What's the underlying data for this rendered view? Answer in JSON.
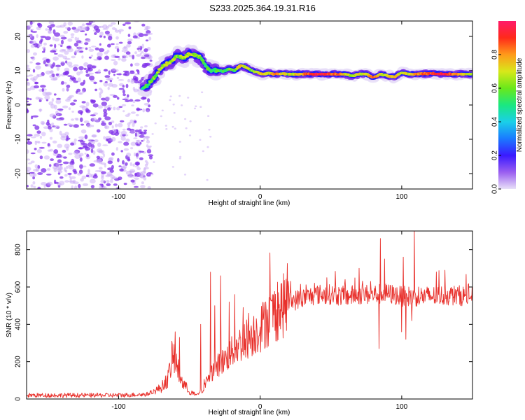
{
  "title": "S233.2025.364.19.31.R16",
  "colors": {
    "snr_line": "#e8312c",
    "dots": "#7d2ee8",
    "dots_light": "#c7a8f5",
    "ridge_core": "#e8313a",
    "ridge_mid": "#22cc66",
    "ridge_edge": "#1a1aff"
  },
  "chart_data": [
    {
      "id": "spectrogram",
      "type": "heatmap",
      "title": "",
      "xlabel": "Height of straight line (km)",
      "ylabel": "Frequency (Hz)",
      "xlim": [
        -165,
        150
      ],
      "ylim": [
        -24.5,
        24.5
      ],
      "xticks": [
        "-100",
        "0",
        "100"
      ],
      "yticks": [
        "-20",
        "-10",
        "0",
        "10",
        "20"
      ],
      "colorbar": {
        "label": "Normalized spectral amplitude",
        "range": [
          0,
          1
        ],
        "ticks": [
          "0.0",
          "0.2",
          "0.4",
          "0.6",
          "0.8"
        ],
        "colormap": [
          "#e8e0f8",
          "#9a5ef0",
          "#3a1aff",
          "#1a7aff",
          "#1ad0e8",
          "#1ae880",
          "#6ae81a",
          "#d8e81a",
          "#ff9a1a",
          "#ff2a1a",
          "#ff1a6a"
        ]
      },
      "ridge": {
        "x": [
          -83,
          -80,
          -77,
          -74,
          -70,
          -66,
          -62,
          -58,
          -54,
          -50,
          -46,
          -42,
          -38,
          -34,
          -30,
          -26,
          -22,
          -18,
          -14,
          -10,
          -6,
          -2,
          2,
          6,
          10,
          15,
          20,
          30,
          40,
          50,
          60,
          65,
          70,
          75,
          80,
          85,
          90,
          95,
          100,
          105,
          110,
          120,
          130,
          140,
          150
        ],
        "y": [
          5,
          5.5,
          7,
          8.5,
          11,
          12,
          13,
          14.5,
          13.5,
          15,
          14.5,
          14,
          11,
          10,
          10.2,
          9.8,
          10.5,
          10,
          11.5,
          11,
          10,
          9.5,
          9,
          9.3,
          9,
          9.2,
          9,
          9,
          9,
          9,
          9,
          8.5,
          9,
          9,
          8,
          9,
          8.5,
          8.2,
          9.5,
          9,
          9,
          9.2,
          9,
          9,
          9
        ],
        "amplitude": [
          0.25,
          0.3,
          0.35,
          0.4,
          0.45,
          0.5,
          0.45,
          0.4,
          0.45,
          0.5,
          0.45,
          0.4,
          0.3,
          0.3,
          0.3,
          0.3,
          0.35,
          0.35,
          0.7,
          0.5,
          0.4,
          0.5,
          0.7,
          0.5,
          0.75,
          0.6,
          0.5,
          0.7,
          0.9,
          0.85,
          0.6,
          0.4,
          0.55,
          0.6,
          0.8,
          0.5,
          0.55,
          0.6,
          0.5,
          0.55,
          0.7,
          0.8,
          0.95,
          0.7,
          0.5
        ]
      },
      "noise_region_x": [
        -165,
        -83
      ]
    },
    {
      "id": "snr",
      "type": "line",
      "title": "",
      "xlabel": "Height of straight line (km)",
      "ylabel": "SNR (10 * v/v)",
      "xlim": [
        -165,
        150
      ],
      "ylim": [
        0,
        900
      ],
      "xticks": [
        "-100",
        "0",
        "100"
      ],
      "yticks": [
        "0",
        "200",
        "400",
        "600",
        "800"
      ],
      "envelope": {
        "x": [
          -165,
          -100,
          -80,
          -70,
          -65,
          -62,
          -60,
          -58,
          -55,
          -52,
          -50,
          -45,
          -40,
          -38,
          -35,
          -30,
          -25,
          -20,
          -15,
          -10,
          -5,
          0,
          10,
          20,
          30,
          40,
          50,
          60,
          70,
          80,
          90,
          100,
          110,
          120,
          130,
          140,
          150
        ],
        "y": [
          20,
          20,
          25,
          60,
          110,
          230,
          210,
          150,
          90,
          60,
          40,
          20,
          50,
          90,
          140,
          180,
          210,
          250,
          290,
          320,
          350,
          380,
          460,
          520,
          540,
          560,
          560,
          550,
          560,
          560,
          565,
          550,
          550,
          550,
          555,
          555,
          550
        ]
      },
      "spikes": [
        {
          "x": -60,
          "y": 360
        },
        {
          "x": -57,
          "y": 330
        },
        {
          "x": -42,
          "y": 400
        },
        {
          "x": -35,
          "y": 680
        },
        {
          "x": -32,
          "y": 500
        },
        {
          "x": -28,
          "y": 660
        },
        {
          "x": -22,
          "y": 520
        },
        {
          "x": -18,
          "y": 560
        },
        {
          "x": -12,
          "y": 490
        },
        {
          "x": -8,
          "y": 460
        },
        {
          "x": 4,
          "y": 520
        },
        {
          "x": 20,
          "y": 600
        },
        {
          "x": 47,
          "y": 650
        },
        {
          "x": 60,
          "y": 640
        },
        {
          "x": 70,
          "y": 700
        },
        {
          "x": 78,
          "y": 630
        },
        {
          "x": 85,
          "y": 860
        },
        {
          "x": 88,
          "y": 750
        },
        {
          "x": 100,
          "y": 790
        },
        {
          "x": 101,
          "y": 760
        },
        {
          "x": 109,
          "y": 900
        },
        {
          "x": 112,
          "y": 600
        }
      ],
      "dips": [
        {
          "x": 84,
          "y": 270
        },
        {
          "x": 100,
          "y": 360
        },
        {
          "x": 103,
          "y": 320
        },
        {
          "x": 107,
          "y": 420
        }
      ]
    }
  ]
}
